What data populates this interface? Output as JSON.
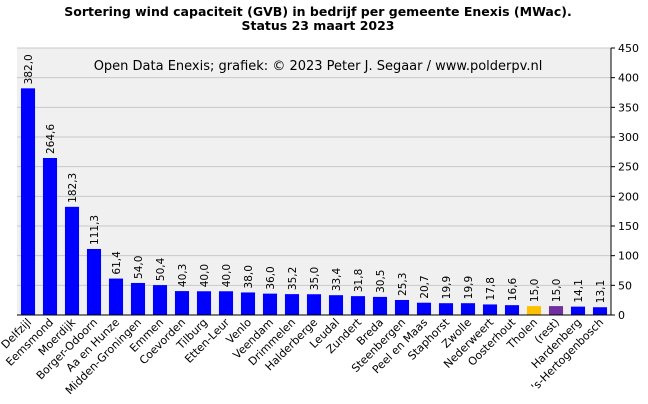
{
  "chart_data": {
    "type": "bar",
    "title_line1": "Sortering wind capaciteit (GVB) in bedrijf per gemeente Enexis (MWac).",
    "title_line2": "Status 23 maart 2023",
    "credit": "Open Data Enexis;  grafiek:  © 2023  Peter J. Segaar / www.polderpv.nl",
    "xlabel": "",
    "ylabel": "",
    "ylim": [
      0,
      450
    ],
    "y_ticks": [
      "0",
      "50",
      "100",
      "150",
      "200",
      "250",
      "300",
      "350",
      "400",
      "450"
    ],
    "grid": true,
    "axis_position": "right",
    "categories": [
      "Delfzijl",
      "Eemsmond",
      "Moerdijk",
      "Borger-Odoorn",
      "Aa en Hunze",
      "Midden-Groningen",
      "Emmen",
      "Coevorden",
      "Tilburg",
      "Etten-Leur",
      "Venlo",
      "Veendam",
      "Drimmelen",
      "Halderberge",
      "Leudal",
      "Zundert",
      "Breda",
      "Steenbergen",
      "Peel en Maas",
      "Staphorst",
      "Zwolle",
      "Nederweert",
      "Oosterhout",
      "Tholen",
      "(rest)",
      "Hardenberg",
      "'s-Hertogenbosch"
    ],
    "values": [
      382.0,
      264.6,
      182.3,
      111.3,
      61.4,
      54.0,
      50.4,
      40.3,
      40.0,
      40.0,
      38.0,
      36.0,
      35.2,
      35.0,
      33.4,
      31.8,
      30.5,
      25.3,
      20.7,
      19.9,
      19.9,
      17.8,
      16.6,
      15.0,
      15.0,
      14.1,
      13.1
    ],
    "value_labels": [
      "382,0",
      "264,6",
      "182,3",
      "111,3",
      "61,4",
      "54,0",
      "50,4",
      "40,3",
      "40,0",
      "40,0",
      "38,0",
      "36,0",
      "35,2",
      "35,0",
      "33,4",
      "31,8",
      "30,5",
      "25,3",
      "20,7",
      "19,9",
      "19,9",
      "17,8",
      "16,6",
      "15,0",
      "15,0",
      "14,1",
      "13,1"
    ],
    "colors": [
      "#0000ff",
      "#0000ff",
      "#0000ff",
      "#0000ff",
      "#0000ff",
      "#0000ff",
      "#0000ff",
      "#0000ff",
      "#0000ff",
      "#0000ff",
      "#0000ff",
      "#0000ff",
      "#0000ff",
      "#0000ff",
      "#0000ff",
      "#0000ff",
      "#0000ff",
      "#0000ff",
      "#0000ff",
      "#0000ff",
      "#0000ff",
      "#0000ff",
      "#0000ff",
      "#ffc000",
      "#7030a0",
      "#0000ff",
      "#0000ff"
    ],
    "plot_background": "#f0f0f0",
    "grid_color": "#c8c8c8"
  }
}
